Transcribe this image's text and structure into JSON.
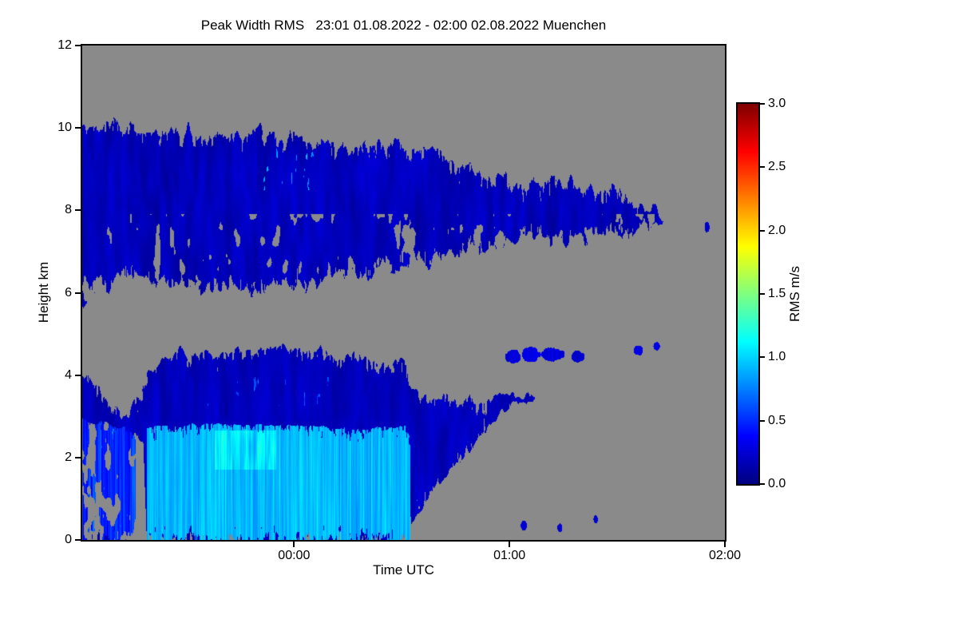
{
  "figure": {
    "background": "#ffffff"
  },
  "chart_data": {
    "type": "heatmap",
    "title": "Peak Width RMS   23:01 01.08.2022 - 02:00 02.08.2022 Muenchen",
    "xlabel": "Time UTC",
    "ylabel": "Height km",
    "x_axis": {
      "min_minutes": -59,
      "max_minutes": 120,
      "ticks": [
        {
          "minutes": 0,
          "label": "00:00"
        },
        {
          "minutes": 60,
          "label": "01:00"
        },
        {
          "minutes": 120,
          "label": "02:00"
        }
      ]
    },
    "y_axis": {
      "min_km": 0,
      "max_km": 12,
      "ticks": [
        0,
        2,
        4,
        6,
        8,
        10,
        12
      ]
    },
    "colorbar": {
      "label": "RMS m/s",
      "min": 0,
      "max": 3,
      "ticks": [
        3,
        2.5,
        2,
        1.5,
        1,
        0.5,
        0
      ],
      "colormap": "jet"
    },
    "no_data_color": "#8a8a8a",
    "frame_color": "#000000",
    "layers": [
      {
        "name": "lower-cloud-deck",
        "seed": 11,
        "edge_noise_km": 0.28,
        "base": 0.18,
        "value_noise": 0.12,
        "hole_threshold": 0.88,
        "hole_band": [
          0.3,
          4.2
        ],
        "speckles": {
          "t": [
            -24,
            10
          ],
          "h": [
            3.25,
            3.95
          ],
          "max": 0.95,
          "density": 0.8
        },
        "points": [
          [
            -59,
            4.0,
            0
          ],
          [
            -55,
            3.8,
            0
          ],
          [
            -51,
            3.3,
            0
          ],
          [
            -47,
            3.05,
            0
          ],
          [
            -44.5,
            3.3,
            2.5
          ],
          [
            -42,
            3.8,
            2.3
          ],
          [
            -41,
            4.1,
            0
          ],
          [
            -37,
            4.4,
            0
          ],
          [
            -32,
            4.55,
            0
          ],
          [
            -27,
            4.5,
            0
          ],
          [
            -22,
            4.45,
            0
          ],
          [
            -17,
            4.55,
            0
          ],
          [
            -12,
            4.6,
            0
          ],
          [
            -7,
            4.7,
            0
          ],
          [
            -2,
            4.65,
            0
          ],
          [
            3,
            4.6,
            0
          ],
          [
            8,
            4.55,
            0
          ],
          [
            13,
            4.5,
            0
          ],
          [
            18,
            4.45,
            0
          ],
          [
            23,
            4.4,
            0
          ],
          [
            28,
            4.35,
            0
          ],
          [
            31,
            4.2,
            0
          ],
          [
            33,
            3.7,
            0.4
          ],
          [
            36,
            3.55,
            0.8
          ],
          [
            40,
            3.5,
            1.4
          ],
          [
            44,
            3.45,
            1.7
          ],
          [
            48,
            3.35,
            2.0
          ],
          [
            52,
            3.4,
            2.5
          ],
          [
            56,
            3.5,
            3.0
          ],
          [
            60,
            3.5,
            3.25
          ],
          [
            64,
            3.5,
            3.3
          ],
          [
            67,
            3.45,
            3.35
          ]
        ]
      },
      {
        "name": "left-precip-streaks",
        "seed": 23,
        "edge_noise_km": 0.12,
        "base": 0.5,
        "value_noise": 0.38,
        "streaky": true,
        "hole_threshold": 0.58,
        "hole_band": [
          0,
          2.9
        ],
        "speckles": {
          "t": [
            -59,
            -46
          ],
          "h": [
            0.2,
            2.7
          ],
          "max": 1.15,
          "density": 0.84
        },
        "points": [
          [
            -59,
            2.9,
            0
          ],
          [
            -56,
            2.85,
            0
          ],
          [
            -53,
            2.8,
            0
          ],
          [
            -50,
            2.75,
            0
          ],
          [
            -47,
            2.7,
            0
          ],
          [
            -45,
            2.6,
            0.1
          ],
          [
            -44.2,
            2.5,
            0.4
          ]
        ]
      },
      {
        "name": "main-precip-band",
        "seed": 37,
        "edge_noise_km": 0.07,
        "base": 0.92,
        "value_noise": 0.2,
        "streaky": true,
        "bright_core": {
          "t": [
            -22,
            -5
          ],
          "h": [
            1.7,
            2.65
          ],
          "boost": 0.3
        },
        "points": [
          [
            -41,
            2.75,
            0
          ],
          [
            -35,
            2.8,
            0
          ],
          [
            -29,
            2.78,
            0
          ],
          [
            -23,
            2.82,
            0
          ],
          [
            -17,
            2.8,
            0
          ],
          [
            -11,
            2.78,
            0
          ],
          [
            -5,
            2.8,
            0
          ],
          [
            1,
            2.78,
            0
          ],
          [
            7,
            2.74,
            0
          ],
          [
            13,
            2.72,
            0
          ],
          [
            19,
            2.7,
            0
          ],
          [
            25,
            2.72,
            0
          ],
          [
            29,
            2.76,
            0
          ],
          [
            31,
            2.8,
            0
          ],
          [
            32.5,
            2.4,
            0
          ]
        ]
      },
      {
        "name": "upper-cloud-layer",
        "seed": 51,
        "edge_noise_km": 0.45,
        "base": 0.17,
        "value_noise": 0.13,
        "hole_threshold": 0.66,
        "hole_band": [
          5.8,
          7.9
        ],
        "speckles": {
          "t": [
            -13,
            7
          ],
          "h": [
            8.5,
            9.65
          ],
          "max": 1.35,
          "density": 0.78
        },
        "points": [
          [
            -59,
            10.0,
            5.6
          ],
          [
            -54,
            10.05,
            6.1
          ],
          [
            -49,
            10.1,
            6.4
          ],
          [
            -44,
            10.05,
            6.5
          ],
          [
            -39,
            10.0,
            6.3
          ],
          [
            -34,
            9.95,
            6.15
          ],
          [
            -29,
            9.9,
            6.05
          ],
          [
            -24,
            9.95,
            6.0
          ],
          [
            -19,
            9.9,
            6.1
          ],
          [
            -14,
            9.85,
            6.0
          ],
          [
            -9,
            9.9,
            5.95
          ],
          [
            -4,
            9.85,
            6.05
          ],
          [
            1,
            9.8,
            6.1
          ],
          [
            6,
            9.7,
            6.2
          ],
          [
            11,
            9.65,
            6.3
          ],
          [
            16,
            9.6,
            6.4
          ],
          [
            21,
            9.55,
            6.5
          ],
          [
            26,
            9.5,
            6.55
          ],
          [
            31,
            9.5,
            6.6
          ],
          [
            36,
            9.45,
            6.7
          ],
          [
            41,
            9.3,
            6.8
          ],
          [
            46,
            9.1,
            6.9
          ],
          [
            51,
            9.0,
            7.0
          ],
          [
            56,
            8.85,
            7.1
          ],
          [
            61,
            8.7,
            7.25
          ],
          [
            66,
            8.6,
            7.3
          ],
          [
            71,
            8.65,
            7.35
          ],
          [
            76,
            8.7,
            7.3
          ],
          [
            81,
            8.65,
            7.25
          ],
          [
            86,
            8.55,
            7.35
          ],
          [
            91,
            8.4,
            7.45
          ],
          [
            96,
            8.25,
            7.55
          ],
          [
            100,
            8.1,
            7.6
          ],
          [
            103,
            7.95,
            7.7
          ]
        ]
      }
    ],
    "blobs": [
      {
        "t": 61,
        "h": 4.45,
        "rt": 2.2,
        "rh": 0.16,
        "v": 0.26
      },
      {
        "t": 66,
        "h": 4.5,
        "rt": 2.6,
        "rh": 0.18,
        "v": 0.3
      },
      {
        "t": 72,
        "h": 4.5,
        "rt": 3.0,
        "rh": 0.16,
        "v": 0.27
      },
      {
        "t": 79,
        "h": 4.45,
        "rt": 1.8,
        "rh": 0.14,
        "v": 0.25
      },
      {
        "t": 96,
        "h": 4.6,
        "rt": 1.3,
        "rh": 0.12,
        "v": 0.3
      },
      {
        "t": 101,
        "h": 4.7,
        "rt": 0.9,
        "rh": 0.1,
        "v": 0.28
      },
      {
        "t": 115,
        "h": 7.6,
        "rt": 0.7,
        "rh": 0.13,
        "v": 0.2
      },
      {
        "t": 64,
        "h": 0.35,
        "rt": 0.9,
        "rh": 0.11,
        "v": 0.25
      },
      {
        "t": 74,
        "h": 0.3,
        "rt": 0.7,
        "rh": 0.1,
        "v": 0.24
      },
      {
        "t": 84,
        "h": 0.5,
        "rt": 0.55,
        "rh": 0.09,
        "v": 0.22
      }
    ]
  }
}
